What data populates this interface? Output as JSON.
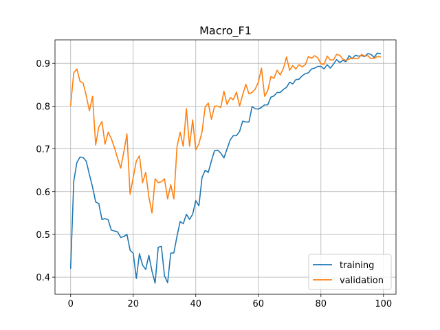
{
  "chart_data": {
    "type": "line",
    "title": "Macro_F1",
    "xlabel": "",
    "ylabel": "",
    "xlim": [
      -5,
      104
    ],
    "ylim": [
      0.36,
      0.955
    ],
    "xticks": [
      0,
      20,
      40,
      60,
      80,
      100
    ],
    "yticks": [
      0.4,
      0.5,
      0.6,
      0.7,
      0.8,
      0.9
    ],
    "xtick_labels": [
      "0",
      "20",
      "40",
      "60",
      "80",
      "100"
    ],
    "ytick_labels": [
      "0.4",
      "0.5",
      "0.6",
      "0.7",
      "0.8",
      "0.9"
    ],
    "grid": true,
    "legend_position": "lower-right",
    "series": [
      {
        "name": "training",
        "color": "#1f77b4",
        "x": [
          0,
          1,
          2,
          3,
          4,
          5,
          6,
          7,
          8,
          9,
          10,
          11,
          12,
          13,
          14,
          15,
          16,
          17,
          18,
          19,
          20,
          21,
          22,
          23,
          24,
          25,
          26,
          27,
          28,
          29,
          30,
          31,
          32,
          33,
          34,
          35,
          36,
          37,
          38,
          39,
          40,
          41,
          42,
          43,
          44,
          45,
          46,
          47,
          48,
          49,
          50,
          51,
          52,
          53,
          54,
          55,
          56,
          57,
          58,
          59,
          60,
          61,
          62,
          63,
          64,
          65,
          66,
          67,
          68,
          69,
          70,
          71,
          72,
          73,
          74,
          75,
          76,
          77,
          78,
          79,
          80,
          81,
          82,
          83,
          84,
          85,
          86,
          87,
          88,
          89,
          90,
          91,
          92,
          93,
          94,
          95,
          96,
          97,
          98,
          99
        ],
        "y": [
          0.421,
          0.625,
          0.668,
          0.681,
          0.68,
          0.671,
          0.64,
          0.611,
          0.576,
          0.572,
          0.535,
          0.537,
          0.534,
          0.51,
          0.508,
          0.506,
          0.493,
          0.495,
          0.5,
          0.463,
          0.456,
          0.397,
          0.455,
          0.428,
          0.418,
          0.451,
          0.414,
          0.386,
          0.47,
          0.472,
          0.403,
          0.387,
          0.456,
          0.457,
          0.496,
          0.53,
          0.525,
          0.547,
          0.535,
          0.547,
          0.579,
          0.567,
          0.633,
          0.65,
          0.645,
          0.672,
          0.696,
          0.697,
          0.69,
          0.679,
          0.7,
          0.721,
          0.731,
          0.731,
          0.741,
          0.765,
          0.763,
          0.763,
          0.799,
          0.794,
          0.793,
          0.797,
          0.803,
          0.803,
          0.821,
          0.824,
          0.832,
          0.832,
          0.839,
          0.844,
          0.856,
          0.852,
          0.862,
          0.863,
          0.871,
          0.876,
          0.878,
          0.887,
          0.889,
          0.893,
          0.893,
          0.887,
          0.897,
          0.889,
          0.898,
          0.909,
          0.902,
          0.907,
          0.904,
          0.918,
          0.911,
          0.919,
          0.917,
          0.918,
          0.916,
          0.923,
          0.921,
          0.914,
          0.924,
          0.923
        ]
      },
      {
        "name": "validation",
        "color": "#ff7f0e",
        "x": [
          0,
          1,
          2,
          3,
          4,
          5,
          6,
          7,
          8,
          9,
          10,
          11,
          12,
          13,
          14,
          15,
          16,
          17,
          18,
          19,
          20,
          21,
          22,
          23,
          24,
          25,
          26,
          27,
          28,
          29,
          30,
          31,
          32,
          33,
          34,
          35,
          36,
          37,
          38,
          39,
          40,
          41,
          42,
          43,
          44,
          45,
          46,
          47,
          48,
          49,
          50,
          51,
          52,
          53,
          54,
          55,
          56,
          57,
          58,
          59,
          60,
          61,
          62,
          63,
          64,
          65,
          66,
          67,
          68,
          69,
          70,
          71,
          72,
          73,
          74,
          75,
          76,
          77,
          78,
          79,
          80,
          81,
          82,
          83,
          84,
          85,
          86,
          87,
          88,
          89,
          90,
          91,
          92,
          93,
          94,
          95,
          96,
          97,
          98,
          99
        ],
        "y": [
          0.802,
          0.878,
          0.887,
          0.858,
          0.854,
          0.824,
          0.789,
          0.823,
          0.709,
          0.751,
          0.764,
          0.711,
          0.739,
          0.724,
          0.703,
          0.678,
          0.655,
          0.693,
          0.735,
          0.594,
          0.633,
          0.672,
          0.684,
          0.621,
          0.645,
          0.588,
          0.55,
          0.63,
          0.621,
          0.623,
          0.63,
          0.583,
          0.616,
          0.583,
          0.705,
          0.739,
          0.706,
          0.794,
          0.706,
          0.768,
          0.698,
          0.712,
          0.74,
          0.798,
          0.807,
          0.769,
          0.8,
          0.8,
          0.797,
          0.835,
          0.804,
          0.82,
          0.815,
          0.833,
          0.8,
          0.827,
          0.851,
          0.829,
          0.832,
          0.84,
          0.856,
          0.889,
          0.823,
          0.836,
          0.869,
          0.865,
          0.884,
          0.873,
          0.888,
          0.915,
          0.884,
          0.895,
          0.887,
          0.897,
          0.892,
          0.897,
          0.916,
          0.912,
          0.918,
          0.913,
          0.899,
          0.898,
          0.917,
          0.908,
          0.908,
          0.921,
          0.919,
          0.91,
          0.907,
          0.91,
          0.913,
          0.911,
          0.912,
          0.921,
          0.917,
          0.918,
          0.911,
          0.912,
          0.916,
          0.915
        ]
      }
    ]
  }
}
